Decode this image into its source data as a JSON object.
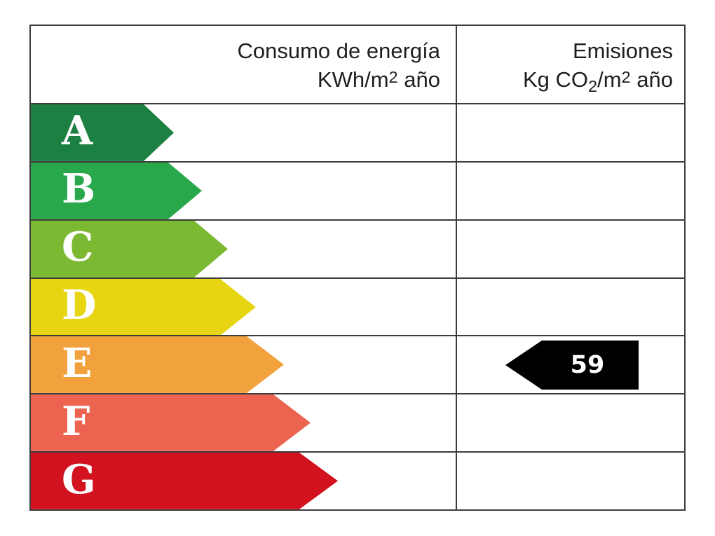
{
  "header": {
    "consumption": {
      "title": "Consumo de energía",
      "unit_prefix": "KWh/m",
      "unit_exp": "2",
      "unit_suffix": " año"
    },
    "emissions": {
      "title": "Emisiones",
      "unit_prefix": "Kg CO",
      "unit_sub": "2",
      "unit_mid": "/m",
      "unit_exp": "2",
      "unit_suffix": " año"
    }
  },
  "ratings": [
    {
      "label": "A",
      "color": "#1B8041",
      "body": 161,
      "tip": 204
    },
    {
      "label": "B",
      "color": "#29A84B",
      "body": 196,
      "tip": 244
    },
    {
      "label": "C",
      "color": "#7CB933",
      "body": 233,
      "tip": 281
    },
    {
      "label": "D",
      "color": "#E7D511",
      "body": 270,
      "tip": 321
    },
    {
      "label": "E",
      "color": "#F2A23C",
      "body": 308,
      "tip": 361
    },
    {
      "label": "F",
      "color": "#EC6450",
      "body": 346,
      "tip": 399
    },
    {
      "label": "G",
      "color": "#D2121F",
      "body": 383,
      "tip": 438
    }
  ],
  "marker": {
    "row": "E",
    "value": "59",
    "color": "#000000",
    "text_color": "#FFFFFF"
  },
  "chart_data": {
    "type": "bar",
    "categories": [
      "A",
      "B",
      "C",
      "D",
      "E",
      "F",
      "G"
    ],
    "columns": [
      "Consumo de energía KWh/m2 año",
      "Emisiones Kg CO2/m2 año"
    ],
    "series": [
      {
        "name": "Consumo de energía KWh/m2 año",
        "values": [
          null,
          null,
          null,
          null,
          null,
          null,
          null
        ]
      },
      {
        "name": "Emisiones Kg CO2/m2 año",
        "values": [
          null,
          null,
          null,
          null,
          59,
          null,
          null
        ]
      }
    ],
    "band_colors": [
      "#1B8041",
      "#29A84B",
      "#7CB933",
      "#E7D511",
      "#F2A23C",
      "#EC6450",
      "#D2121F"
    ],
    "marker": {
      "column": "Emisiones Kg CO2/m2 año",
      "class": "E",
      "value": 59
    },
    "legend": false,
    "grid": true
  }
}
